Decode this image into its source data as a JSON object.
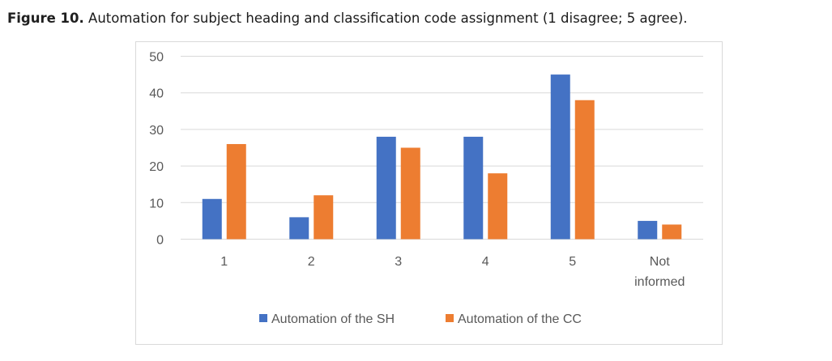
{
  "caption": {
    "label": "Figure 10.",
    "text": " Automation for subject heading and classification code assignment (1 disagree; 5 agree)."
  },
  "chart_data": {
    "type": "bar",
    "categories": [
      "1",
      "2",
      "3",
      "4",
      "5",
      "Not informed"
    ],
    "category_lines": [
      [
        "1"
      ],
      [
        "2"
      ],
      [
        "3"
      ],
      [
        "4"
      ],
      [
        "5"
      ],
      [
        "Not",
        "informed"
      ]
    ],
    "series": [
      {
        "name": "Automation of the SH",
        "values": [
          11,
          6,
          28,
          28,
          45,
          5
        ],
        "color": "#4472c4"
      },
      {
        "name": "Automation of the CC",
        "values": [
          26,
          12,
          25,
          18,
          38,
          4
        ],
        "color": "#ed7d31"
      }
    ],
    "yticks": [
      "0",
      "10",
      "20",
      "30",
      "40",
      "50"
    ],
    "ylim": [
      0,
      50
    ],
    "grid": true,
    "legend_position": "bottom",
    "gridline_color": "#d9d9d9"
  }
}
